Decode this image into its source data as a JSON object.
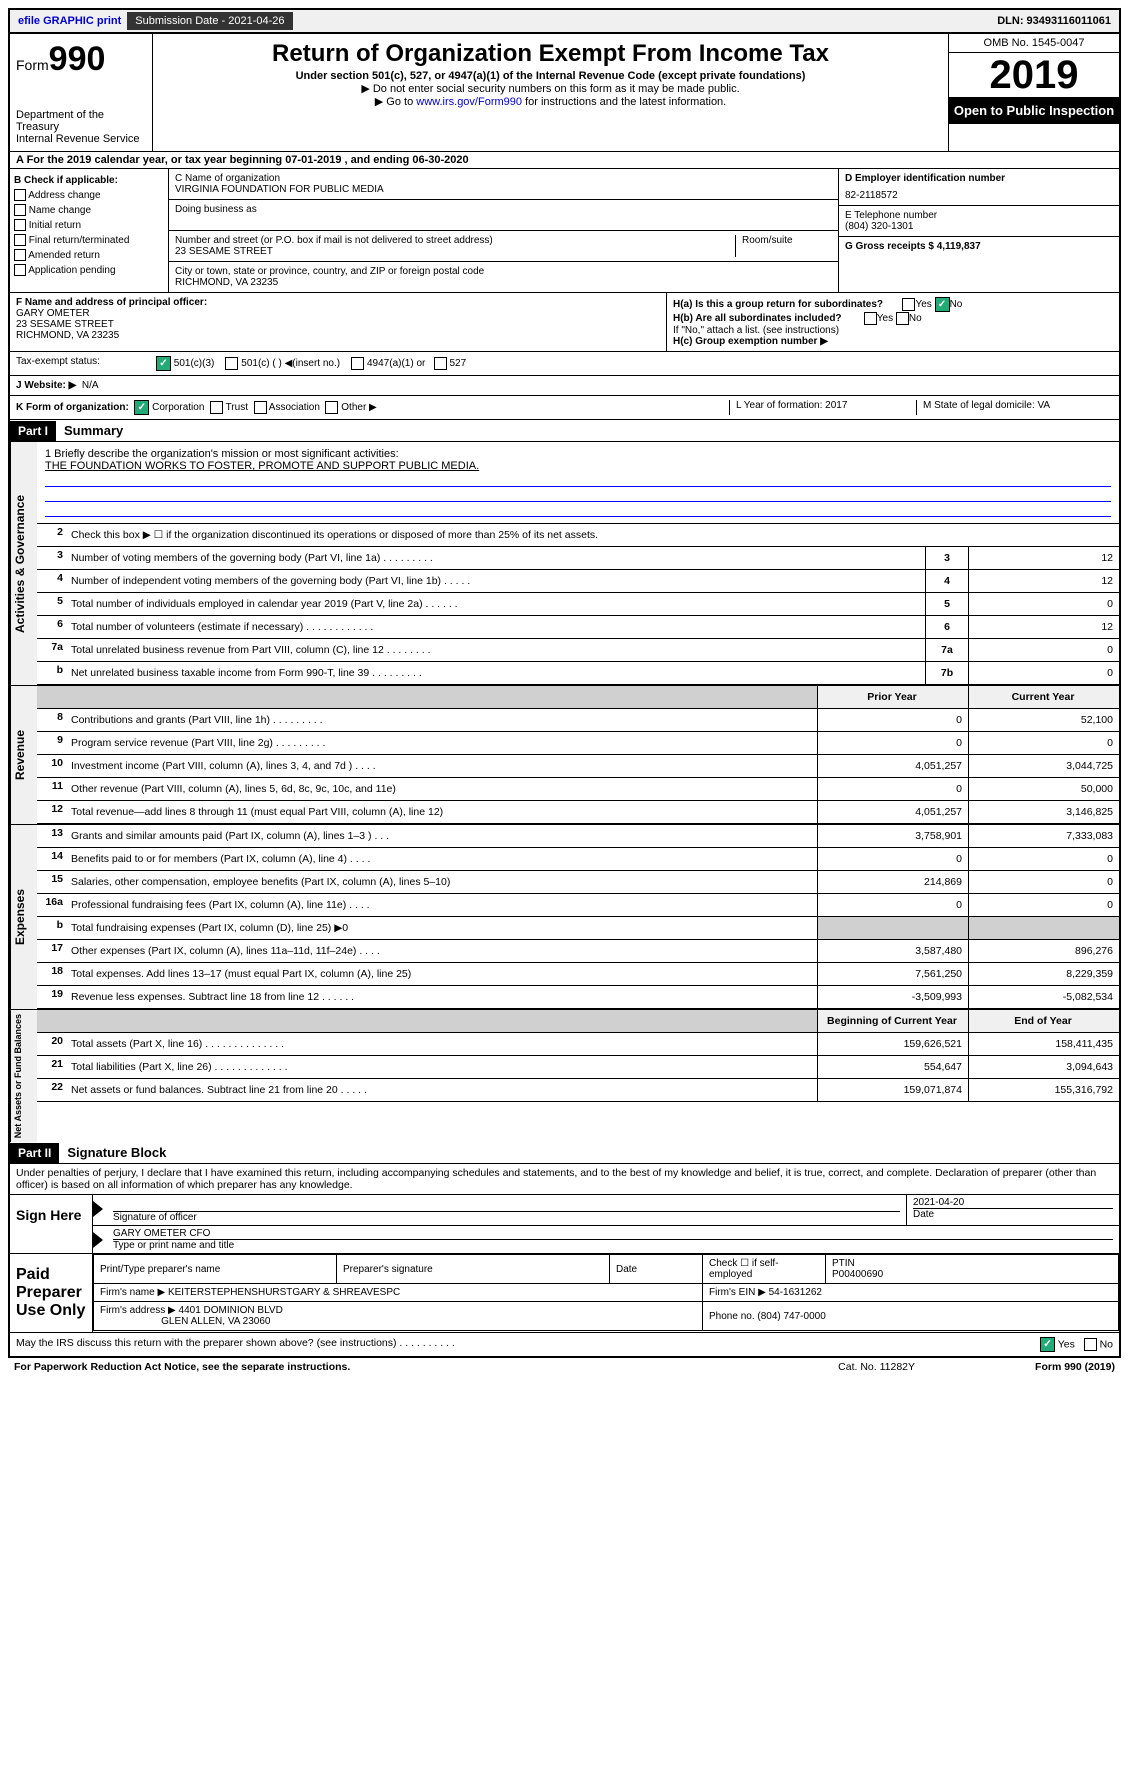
{
  "top": {
    "efile": "efile GRAPHIC print",
    "sub_label": "Submission Date - 2021-04-26",
    "dln": "DLN: 93493116011061"
  },
  "header": {
    "form_prefix": "Form",
    "form_num": "990",
    "dept": "Department of the Treasury",
    "irs": "Internal Revenue Service",
    "title": "Return of Organization Exempt From Income Tax",
    "sub1": "Under section 501(c), 527, or 4947(a)(1) of the Internal Revenue Code (except private foundations)",
    "sub2": "▶ Do not enter social security numbers on this form as it may be made public.",
    "sub3_pre": "▶ Go to ",
    "sub3_link": "www.irs.gov/Form990",
    "sub3_post": " for instructions and the latest information.",
    "omb": "OMB No. 1545-0047",
    "year": "2019",
    "open": "Open to Public Inspection"
  },
  "period": "A For the 2019 calendar year, or tax year beginning 07-01-2019     , and ending 06-30-2020",
  "colB": {
    "title": "B Check if applicable:",
    "items": [
      "Address change",
      "Name change",
      "Initial return",
      "Final return/terminated",
      "Amended return",
      "Application pending"
    ]
  },
  "colC": {
    "name_lbl": "C Name of organization",
    "name": "VIRGINIA FOUNDATION FOR PUBLIC MEDIA",
    "dba_lbl": "Doing business as",
    "addr_lbl": "Number and street (or P.O. box if mail is not delivered to street address)",
    "room_lbl": "Room/suite",
    "addr": "23 SESAME STREET",
    "city_lbl": "City or town, state or province, country, and ZIP or foreign postal code",
    "city": "RICHMOND, VA  23235"
  },
  "colDE": {
    "d_lbl": "D Employer identification number",
    "d_val": "82-2118572",
    "e_lbl": "E Telephone number",
    "e_val": "(804) 320-1301",
    "g_lbl": "G Gross receipts $ 4,119,837"
  },
  "rowF": {
    "lbl": "F Name and address of principal officer:",
    "name": "GARY OMETER",
    "addr1": "23 SESAME STREET",
    "addr2": "RICHMOND, VA  23235"
  },
  "rowH": {
    "ha": "H(a)  Is this a group return for subordinates?",
    "hb": "H(b)  Are all subordinates included?",
    "hb_note": "If \"No,\" attach a list. (see instructions)",
    "hc": "H(c)  Group exemption number ▶",
    "yes": "Yes",
    "no": "No"
  },
  "taxStatus": {
    "lbl": "Tax-exempt status:",
    "opt1": "501(c)(3)",
    "opt2": "501(c) (  ) ◀(insert no.)",
    "opt3": "4947(a)(1) or",
    "opt4": "527"
  },
  "rowJ": {
    "lbl": "J   Website: ▶",
    "val": "N/A"
  },
  "rowK": {
    "lbl": "K Form of organization:",
    "opts": [
      "Corporation",
      "Trust",
      "Association",
      "Other ▶"
    ],
    "l_lbl": "L Year of formation: 2017",
    "m_lbl": "M State of legal domicile: VA"
  },
  "part1": {
    "hdr": "Part I",
    "title": "Summary"
  },
  "mission": {
    "q1": "1  Briefly describe the organization's mission or most significant activities:",
    "text": "THE FOUNDATION WORKS TO FOSTER, PROMOTE AND SUPPORT PUBLIC MEDIA."
  },
  "governance": {
    "tab": "Activities & Governance",
    "rows": [
      {
        "n": "2",
        "t": "Check this box ▶ ☐  if the organization discontinued its operations or disposed of more than 25% of its net assets.",
        "ln": "",
        "v": ""
      },
      {
        "n": "3",
        "t": "Number of voting members of the governing body (Part VI, line 1a)   .    .    .    .    .    .    .    .    .",
        "ln": "3",
        "v": "12"
      },
      {
        "n": "4",
        "t": "Number of independent voting members of the governing body (Part VI, line 1b)    .    .    .    .    .",
        "ln": "4",
        "v": "12"
      },
      {
        "n": "5",
        "t": "Total number of individuals employed in calendar year 2019 (Part V, line 2a)    .    .    .    .    .    .",
        "ln": "5",
        "v": "0"
      },
      {
        "n": "6",
        "t": "Total number of volunteers (estimate if necessary)    .    .    .    .    .    .    .    .    .    .    .    .",
        "ln": "6",
        "v": "12"
      },
      {
        "n": "7a",
        "t": "Total unrelated business revenue from Part VIII, column (C), line 12   .    .    .    .    .    .    .    .",
        "ln": "7a",
        "v": "0"
      },
      {
        "n": "b",
        "t": "Net unrelated business taxable income from Form 990-T, line 39    .    .    .    .    .    .    .    .    .",
        "ln": "7b",
        "v": "0"
      }
    ]
  },
  "revHeader": {
    "prior": "Prior Year",
    "current": "Current Year"
  },
  "revenue": {
    "tab": "Revenue",
    "rows": [
      {
        "n": "8",
        "t": "Contributions and grants (Part VIII, line 1h)   .    .    .    .    .    .    .    .    .",
        "p": "0",
        "c": "52,100"
      },
      {
        "n": "9",
        "t": "Program service revenue (Part VIII, line 2g)    .    .    .    .    .    .    .    .    .",
        "p": "0",
        "c": "0"
      },
      {
        "n": "10",
        "t": "Investment income (Part VIII, column (A), lines 3, 4, and 7d )    .    .    .    .",
        "p": "4,051,257",
        "c": "3,044,725"
      },
      {
        "n": "11",
        "t": "Other revenue (Part VIII, column (A), lines 5, 6d, 8c, 9c, 10c, and 11e)",
        "p": "0",
        "c": "50,000"
      },
      {
        "n": "12",
        "t": "Total revenue—add lines 8 through 11 (must equal Part VIII, column (A), line 12)",
        "p": "4,051,257",
        "c": "3,146,825"
      }
    ]
  },
  "expenses": {
    "tab": "Expenses",
    "rows": [
      {
        "n": "13",
        "t": "Grants and similar amounts paid (Part IX, column (A), lines 1–3 )    .    .    .",
        "p": "3,758,901",
        "c": "7,333,083"
      },
      {
        "n": "14",
        "t": "Benefits paid to or for members (Part IX, column (A), line 4)    .    .    .    .",
        "p": "0",
        "c": "0"
      },
      {
        "n": "15",
        "t": "Salaries, other compensation, employee benefits (Part IX, column (A), lines 5–10)",
        "p": "214,869",
        "c": "0"
      },
      {
        "n": "16a",
        "t": "Professional fundraising fees (Part IX, column (A), line 11e)    .    .    .    .",
        "p": "0",
        "c": "0"
      },
      {
        "n": "b",
        "t": "Total fundraising expenses (Part IX, column (D), line 25) ▶0",
        "p": "",
        "c": "",
        "shaded": true
      },
      {
        "n": "17",
        "t": "Other expenses (Part IX, column (A), lines 11a–11d, 11f–24e)   .    .    .    .",
        "p": "3,587,480",
        "c": "896,276"
      },
      {
        "n": "18",
        "t": "Total expenses. Add lines 13–17 (must equal Part IX, column (A), line 25)",
        "p": "7,561,250",
        "c": "8,229,359"
      },
      {
        "n": "19",
        "t": "Revenue less expenses. Subtract line 18 from line 12    .    .    .    .    .    .",
        "p": "-3,509,993",
        "c": "-5,082,534"
      }
    ]
  },
  "netHeader": {
    "beg": "Beginning of Current Year",
    "end": "End of Year"
  },
  "netassets": {
    "tab": "Net Assets or Fund Balances",
    "rows": [
      {
        "n": "20",
        "t": "Total assets (Part X, line 16)   .    .    .    .    .    .    .    .    .    .    .    .    .    .",
        "p": "159,626,521",
        "c": "158,411,435"
      },
      {
        "n": "21",
        "t": "Total liabilities (Part X, line 26)    .    .    .    .    .    .    .    .    .    .    .    .    .",
        "p": "554,647",
        "c": "3,094,643"
      },
      {
        "n": "22",
        "t": "Net assets or fund balances. Subtract line 21 from line 20   .    .    .    .    .",
        "p": "159,071,874",
        "c": "155,316,792"
      }
    ]
  },
  "part2": {
    "hdr": "Part II",
    "title": "Signature Block"
  },
  "perjury": "Under penalties of perjury, I declare that I have examined this return, including accompanying schedules and statements, and to the best of my knowledge and belief, it is true, correct, and complete. Declaration of preparer (other than officer) is based on all information of which preparer has any knowledge.",
  "sign": {
    "left": "Sign Here",
    "sig_lbl": "Signature of officer",
    "date": "2021-04-20",
    "date_lbl": "Date",
    "name": "GARY OMETER CFO",
    "name_lbl": "Type or print name and title"
  },
  "prep": {
    "left": "Paid Preparer Use Only",
    "h1": "Print/Type preparer's name",
    "h2": "Preparer's signature",
    "h3": "Date",
    "h4_a": "Check ☐ if self-employed",
    "h4_b": "PTIN",
    "ptin": "P00400690",
    "firm_lbl": "Firm's name     ▶",
    "firm": "KEITERSTEPHENSHURSTGARY & SHREAVESPC",
    "ein_lbl": "Firm's EIN ▶ 54-1631262",
    "addr_lbl": "Firm's address ▶",
    "addr1": "4401 DOMINION BLVD",
    "addr2": "GLEN ALLEN, VA  23060",
    "phone": "Phone no. (804) 747-0000"
  },
  "footer": {
    "discuss": "May the IRS discuss this return with the preparer shown above? (see instructions)    .    .    .    .    .    .    .    .    .    .",
    "yes": "Yes",
    "no": "No",
    "paperwork": "For Paperwork Reduction Act Notice, see the separate instructions.",
    "cat": "Cat. No. 11282Y",
    "form": "Form 990 (2019)"
  }
}
